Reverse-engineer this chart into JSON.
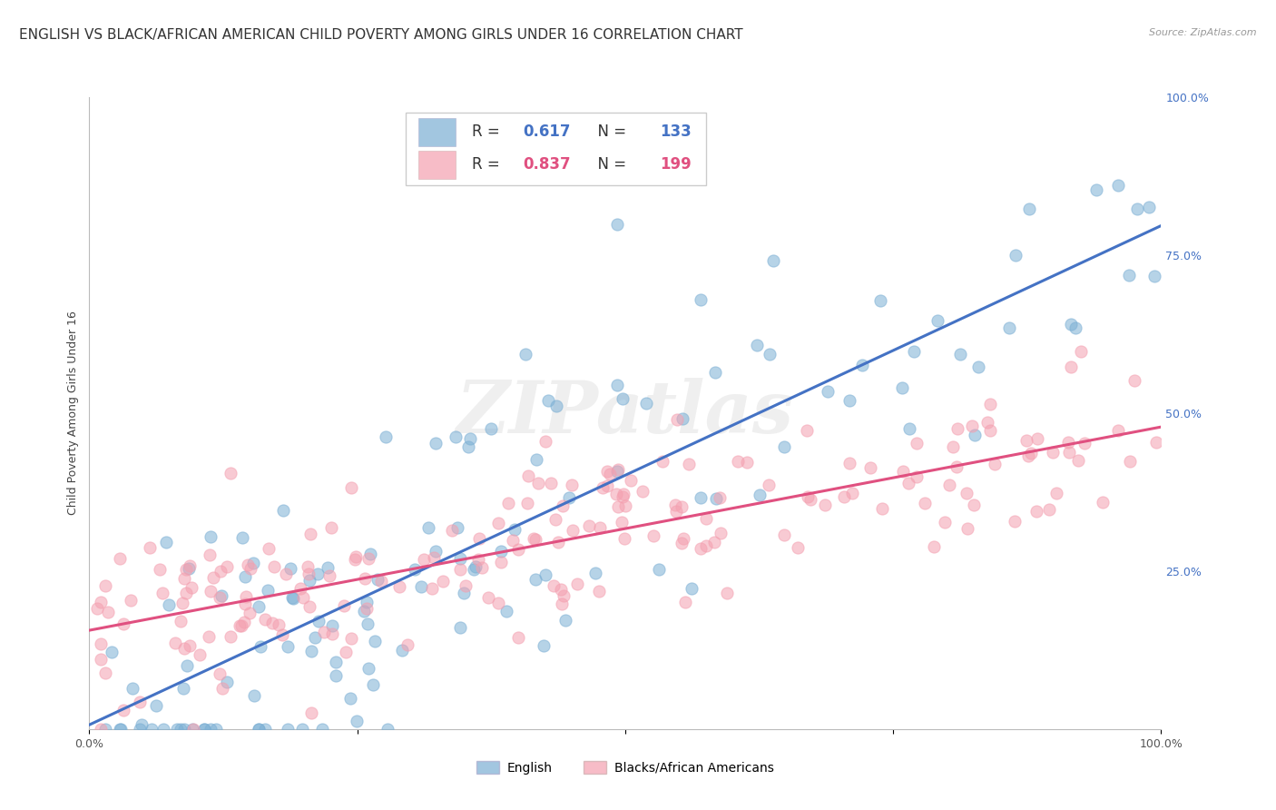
{
  "title": "ENGLISH VS BLACK/AFRICAN AMERICAN CHILD POVERTY AMONG GIRLS UNDER 16 CORRELATION CHART",
  "source": "Source: ZipAtlas.com",
  "ylabel": "Child Poverty Among Girls Under 16",
  "xlim": [
    0,
    1
  ],
  "ylim": [
    0,
    1
  ],
  "ytick_labels_right": [
    "25.0%",
    "50.0%",
    "75.0%",
    "100.0%"
  ],
  "ytick_vals_right": [
    0.25,
    0.5,
    0.75,
    1.0
  ],
  "english_R": "0.617",
  "english_N": "133",
  "black_R": "0.837",
  "black_N": "199",
  "english_color": "#7BAFD4",
  "black_color": "#F4A0B0",
  "english_line_color": "#4472C4",
  "black_line_color": "#E05080",
  "legend_label_english": "English",
  "legend_label_black": "Blacks/African Americans",
  "watermark": "ZIPatlas",
  "background_color": "#FFFFFF",
  "grid_color": "#E8E8E8",
  "title_fontsize": 11,
  "axis_label_fontsize": 9,
  "tick_fontsize": 9,
  "legend_fontsize": 12,
  "english_seed": 42,
  "black_seed": 7
}
